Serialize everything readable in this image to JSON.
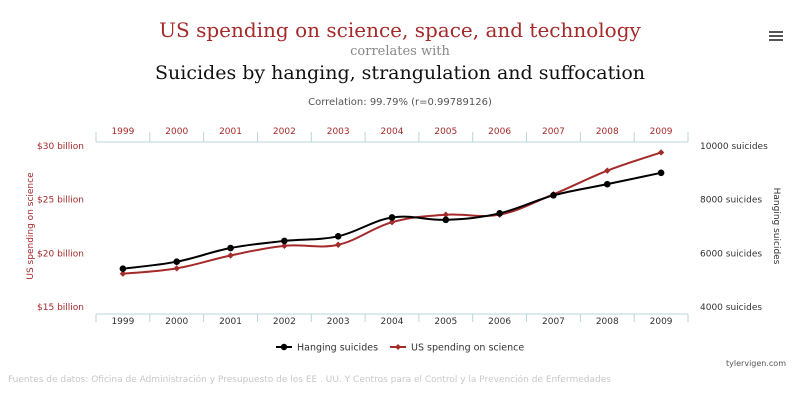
{
  "header": {
    "title": "US spending on science, space, and technology",
    "correlates": "correlates with",
    "title2": "Suicides by hanging, strangulation and suffocation",
    "correlation": "Correlation: 99.79% (r=0.99789126)"
  },
  "menu": {
    "icon": "hamburger-menu-icon"
  },
  "chart_data": {
    "type": "line",
    "x": [
      "1999",
      "2000",
      "2001",
      "2002",
      "2003",
      "2004",
      "2005",
      "2006",
      "2007",
      "2008",
      "2009"
    ],
    "series": [
      {
        "name": "US spending on science",
        "axis": "left",
        "color": "#a52a2a",
        "values": [
          18.1,
          18.6,
          19.8,
          20.7,
          20.8,
          22.9,
          23.6,
          23.6,
          25.5,
          27.7,
          29.4
        ]
      },
      {
        "name": "Hanging suicides",
        "axis": "right",
        "color": "#000000",
        "values": [
          5427,
          5688,
          6198,
          6462,
          6635,
          7336,
          7248,
          7491,
          8161,
          8578,
          9000
        ]
      }
    ],
    "ylabel_left": "US spending on science",
    "ylabel_right": "Hanging suicides",
    "ylim_left": [
      15,
      30
    ],
    "ylim_right": [
      4000,
      10000
    ],
    "yticks_left": [
      {
        "v": 15,
        "label": "$15 billion"
      },
      {
        "v": 20,
        "label": "$20 billion"
      },
      {
        "v": 25,
        "label": "$25 billion"
      },
      {
        "v": 30,
        "label": "$30 billion"
      }
    ],
    "yticks_right": [
      {
        "v": 4000,
        "label": "4000 suicides"
      },
      {
        "v": 6000,
        "label": "6000 suicides"
      },
      {
        "v": 8000,
        "label": "8000 suicides"
      },
      {
        "v": 10000,
        "label": "10000 suicides"
      }
    ],
    "grid": false,
    "legend": "bottom-center",
    "legend_order": [
      "Hanging suicides",
      "US spending on science"
    ],
    "colors": {
      "left_axis": "#a52a2a",
      "right_axis": "#333333",
      "axis_line": "#b8d4dc"
    }
  },
  "credit": "tylervigen.com",
  "footer": "Fuentes de datos: Oficina de Administración y Presupuesto de los EE . UU. Y Centros para el Control y la Prevención de Enfermedades"
}
